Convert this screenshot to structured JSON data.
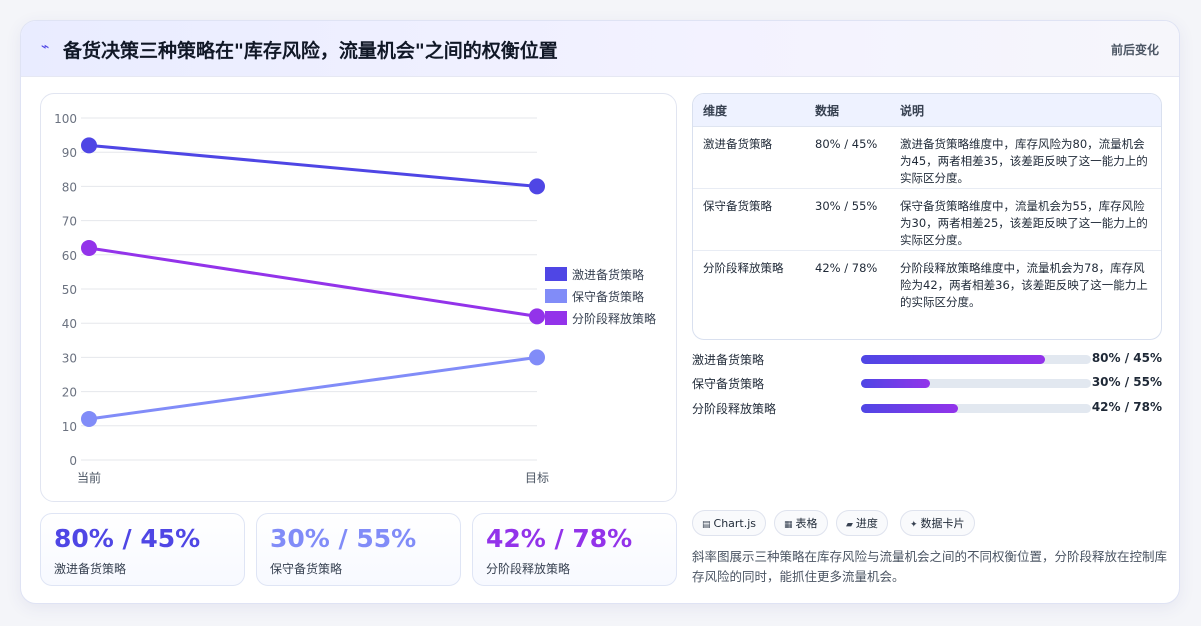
{
  "header": {
    "icon": "pulse-icon",
    "title": "备货决策三种策略在\"库存风险，流量机会\"之间的权衡位置",
    "meta": "前后变化"
  },
  "chart_data": {
    "type": "line",
    "categories": [
      "当前",
      "目标"
    ],
    "series": [
      {
        "name": "激进备货策略",
        "values": [
          92,
          80
        ],
        "color": "#4f46e5"
      },
      {
        "name": "保守备货策略",
        "values": [
          12,
          30
        ],
        "color": "#818cf8"
      },
      {
        "name": "分阶段释放策略",
        "values": [
          62,
          42
        ],
        "color": "#9333ea"
      }
    ],
    "ylim": [
      0,
      100
    ],
    "yticks": [
      0,
      10,
      20,
      30,
      40,
      50,
      60,
      70,
      80,
      90,
      100
    ],
    "grid": true,
    "legend": "right"
  },
  "stats": [
    {
      "value": "80% / 45%",
      "label": "激进备货策略",
      "color": "#4f46e5"
    },
    {
      "value": "30% / 55%",
      "label": "保守备货策略",
      "color": "#818cf8"
    },
    {
      "value": "42% / 78%",
      "label": "分阶段释放策略",
      "color": "#9333ea"
    }
  ],
  "table": {
    "headers": [
      "维度",
      "数据",
      "说明"
    ],
    "rows": [
      {
        "dim": "激进备货策略",
        "data": "80% / 45%",
        "desc": "激进备货策略维度中，库存风险为80，流量机会为45，两者相差35，该差距反映了这一能力上的实际区分度。"
      },
      {
        "dim": "保守备货策略",
        "data": "30% / 55%",
        "desc": "保守备货策略维度中，流量机会为55，库存风险为30，两者相差25，该差距反映了这一能力上的实际区分度。"
      },
      {
        "dim": "分阶段释放策略",
        "data": "42% / 78%",
        "desc": "分阶段释放策略维度中，流量机会为78，库存风险为42，两者相差36，该差距反映了这一能力上的实际区分度。"
      }
    ]
  },
  "progress": [
    {
      "label": "激进备货策略",
      "value_text": "80% / 45%",
      "fraction": 0.8
    },
    {
      "label": "保守备货策略",
      "value_text": "30% / 55%",
      "fraction": 0.3
    },
    {
      "label": "分阶段释放策略",
      "value_text": "42% / 78%",
      "fraction": 0.42
    }
  ],
  "chips": [
    {
      "icon": "chart-icon",
      "glyph": "▤",
      "label": "Chart.js"
    },
    {
      "icon": "table-icon",
      "glyph": "▦",
      "label": "表格"
    },
    {
      "icon": "progress-icon",
      "glyph": "▰",
      "label": "进度"
    },
    {
      "icon": "sparkle-icon",
      "glyph": "✦",
      "label": "数据卡片"
    }
  ],
  "note": "斜率图展示三种策略在库存风险与流量机会之间的不同权衡位置，分阶段释放在控制库存风险的同时，能抓住更多流量机会。"
}
